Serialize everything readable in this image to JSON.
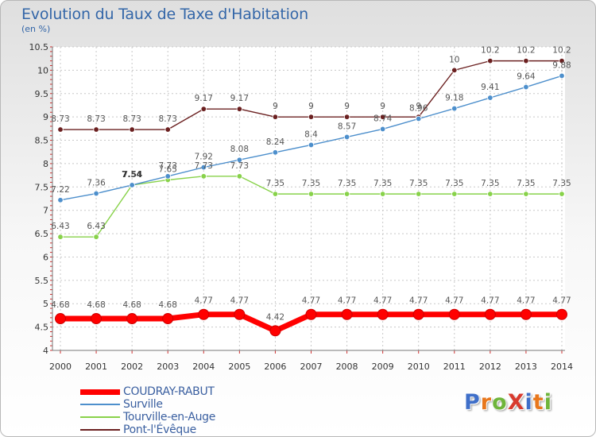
{
  "header": {
    "title": "Evolution du Taux de Taxe d'Habitation",
    "unit": "(en %)"
  },
  "logo": {
    "text": "ProXiti",
    "letter_colors": [
      "#3f6fc9",
      "#e8771c",
      "#6fb53b",
      "#d83a2e",
      "#3f6fc9",
      "#e8771c",
      "#6fb53b"
    ]
  },
  "chart_data": {
    "type": "line",
    "title": "Evolution du Taux de Taxe d'Habitation",
    "subtitle": "(en %)",
    "x": [
      "2000",
      "2001",
      "2002",
      "2003",
      "2004",
      "2005",
      "2006",
      "2007",
      "2008",
      "2009",
      "2010",
      "2011",
      "2012",
      "2013",
      "2014"
    ],
    "ylim": [
      4,
      10.5
    ],
    "yticks": [
      "4",
      "4.5",
      "5",
      "5.5",
      "6",
      "6.5",
      "7",
      "7.5",
      "8",
      "8.5",
      "9",
      "9.5",
      "10",
      "10.5"
    ],
    "legend_position": "bottom-left",
    "series": [
      {
        "name": "COUDRAY-RABUT",
        "color": "#ff0000",
        "values": [
          4.68,
          4.68,
          4.68,
          4.68,
          4.77,
          4.77,
          4.42,
          4.77,
          4.77,
          4.77,
          4.77,
          4.77,
          4.77,
          4.77,
          4.77
        ],
        "labels": [
          "4.68",
          "4.68",
          "4.68",
          "4.68",
          "4.77",
          "4.77",
          "4.42",
          "4.77",
          "4.77",
          "4.77",
          "4.77",
          "4.77",
          "4.77",
          "4.77",
          "4.77"
        ]
      },
      {
        "name": "Surville",
        "color": "#4d8fcc",
        "values": [
          7.22,
          7.36,
          7.54,
          7.73,
          7.92,
          8.08,
          8.24,
          8.4,
          8.57,
          8.74,
          8.96,
          9.18,
          9.41,
          9.64,
          9.88
        ],
        "labels": [
          "7.22",
          "7.36",
          "7.54",
          "7.73",
          "7.92",
          "8.08",
          "8.24",
          "8.4",
          "8.57",
          "8.74",
          "8.96",
          "9.18",
          "9.41",
          "9.64",
          "9.88"
        ]
      },
      {
        "name": "Tourville-en-Auge",
        "color": "#88d24a",
        "values": [
          6.43,
          6.43,
          7.54,
          7.65,
          7.73,
          7.73,
          7.35,
          7.35,
          7.35,
          7.35,
          7.35,
          7.35,
          7.35,
          7.35,
          7.35
        ],
        "labels": [
          "6.43",
          "6.43",
          "7.54",
          "7.65",
          "7.73",
          "7.73",
          "7.35",
          "7.35",
          "7.35",
          "7.35",
          "7.35",
          "7.35",
          "7.35",
          "7.35",
          "7.35"
        ]
      },
      {
        "name": "Pont-l'Évêque",
        "color": "#6b2020",
        "values": [
          8.73,
          8.73,
          8.73,
          8.73,
          9.17,
          9.17,
          9,
          9,
          9,
          9,
          9,
          10,
          10.2,
          10.2,
          10.2
        ],
        "labels": [
          "8.73",
          "8.73",
          "8.73",
          "8.73",
          "9.17",
          "9.17",
          "9",
          "9",
          "9",
          "9",
          "9",
          "10",
          "10.2",
          "10.2",
          "10.2"
        ]
      }
    ]
  }
}
